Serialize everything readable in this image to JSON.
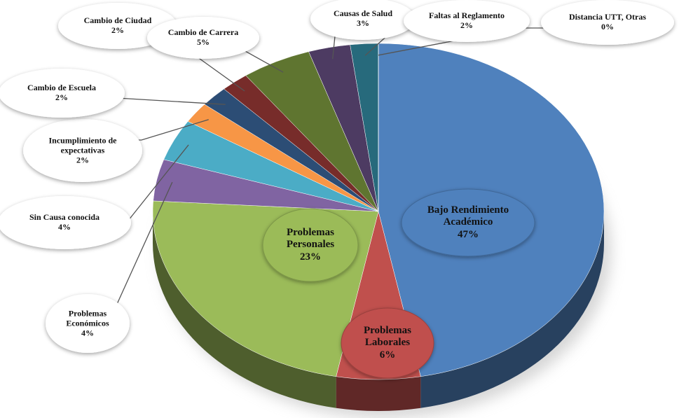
{
  "chart_data": {
    "type": "pie",
    "categories": [
      "Bajo Rendimiento Académico",
      "Problemas Laborales",
      "Problemas Personales",
      "Problemas Económicos",
      "Sin Causa conocida",
      "Incumplimiento de expectativas",
      "Cambio de Escuela",
      "Cambio de Ciudad",
      "Cambio de Carrera",
      "Causas de Salud",
      "Faltas al Reglamento",
      "Distancia UTT, Otras"
    ],
    "values": [
      47,
      6,
      23,
      4,
      4,
      2,
      2,
      2,
      5,
      3,
      2,
      0
    ],
    "value_labels": [
      "47%",
      "6%",
      "23%",
      "4%",
      "4%",
      "2%",
      "2%",
      "2%",
      "5%",
      "3%",
      "2%",
      "0%"
    ],
    "colors": [
      "#4f81bd",
      "#c0504d",
      "#9bbb59",
      "#8064a2",
      "#4bacc6",
      "#f79646",
      "#2c4d75",
      "#772c2a",
      "#5f7530",
      "#4d3b62",
      "#276a7c",
      "#b65708"
    ]
  }
}
